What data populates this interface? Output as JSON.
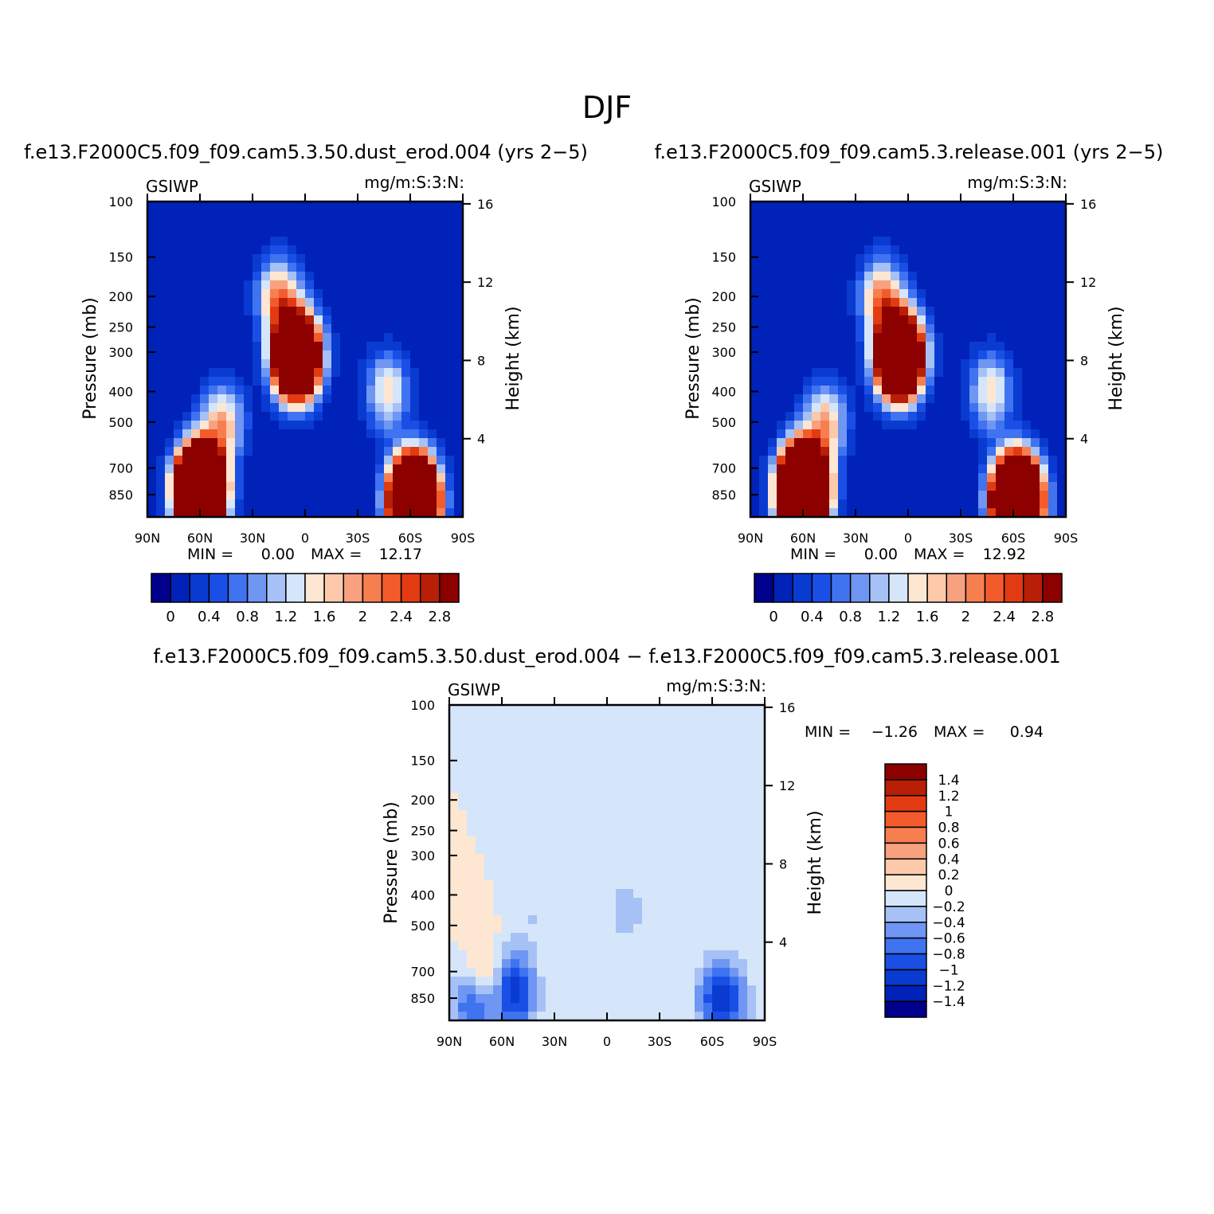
{
  "figure": {
    "title": "DJF"
  },
  "palettes": {
    "abs": [
      "#00008c",
      "#0022b8",
      "#0a3bd1",
      "#1a4fe6",
      "#3f73f0",
      "#6f96f2",
      "#a6c1f5",
      "#d5e6fa",
      "#fde6d2",
      "#fcc9ab",
      "#f7a17e",
      "#f77f4f",
      "#f45b2c",
      "#e23b12",
      "#b81f06",
      "#8c0000"
    ],
    "diff": [
      "#00008c",
      "#0022b8",
      "#0a3bd1",
      "#1a4fe6",
      "#3f73f0",
      "#6f96f2",
      "#a6c1f5",
      "#d5e6fa",
      "#fde6d2",
      "#fcc9ab",
      "#f7a17e",
      "#f77f4f",
      "#f45b2c",
      "#e23b12",
      "#b81f06",
      "#8c0000"
    ]
  },
  "chart_data": [
    {
      "type": "heatmap",
      "title": "f.e13.F2000C5.f09_f09.cam5.3.50.dust_erod.004 (yrs 2−5)",
      "left_label": "GSIWP",
      "right_label": "mg/m:S:3:N:",
      "ylabel": "Pressure (mb)",
      "ylabel_right": "Height (km)",
      "x_ticks": [
        "90N",
        "60N",
        "30N",
        "0",
        "30S",
        "60S",
        "90S"
      ],
      "y_ticks": [
        "100",
        "150",
        "200",
        "250",
        "300",
        "400",
        "500",
        "700",
        "850"
      ],
      "y_ticks_right": [
        "16",
        "12",
        "8",
        "4"
      ],
      "min_label": "MIN =",
      "min_value": "0.00",
      "max_label": "MAX =",
      "max_value": "12.17",
      "colorbar_labels": [
        "0",
        "0.4",
        "0.8",
        "1.2",
        "1.6",
        "2",
        "2.4",
        "2.8"
      ],
      "levels": [
        0,
        0.2,
        0.4,
        0.6,
        0.8,
        1.0,
        1.2,
        1.4,
        1.6,
        1.8,
        2.0,
        2.2,
        2.4,
        2.6,
        2.8
      ],
      "features": [
        {
          "lat": 60,
          "p": 820,
          "amp": 13.0
        },
        {
          "lat": 47,
          "p": 500,
          "amp": 1.8
        },
        {
          "lat": 5,
          "p": 310,
          "amp": 9.0
        },
        {
          "lat": 15,
          "p": 200,
          "amp": 2.0
        },
        {
          "lat": -47,
          "p": 400,
          "amp": 1.6
        },
        {
          "lat": -62,
          "p": 880,
          "amp": 12.0
        }
      ]
    },
    {
      "type": "heatmap",
      "title": "f.e13.F2000C5.f09_f09.cam5.3.release.001 (yrs 2−5)",
      "left_label": "GSIWP",
      "right_label": "mg/m:S:3:N:",
      "ylabel": "Pressure (mb)",
      "ylabel_right": "Height (km)",
      "x_ticks": [
        "90N",
        "60N",
        "30N",
        "0",
        "30S",
        "60S",
        "90S"
      ],
      "y_ticks": [
        "100",
        "150",
        "200",
        "250",
        "300",
        "400",
        "500",
        "700",
        "850"
      ],
      "y_ticks_right": [
        "16",
        "12",
        "8",
        "4"
      ],
      "min_label": "MIN =",
      "min_value": "0.00",
      "max_label": "MAX =",
      "max_value": "12.92",
      "colorbar_labels": [
        "0",
        "0.4",
        "0.8",
        "1.2",
        "1.6",
        "2",
        "2.4",
        "2.8"
      ],
      "levels": [
        0,
        0.2,
        0.4,
        0.6,
        0.8,
        1.0,
        1.2,
        1.4,
        1.6,
        1.8,
        2.0,
        2.2,
        2.4,
        2.6,
        2.8
      ],
      "features": [
        {
          "lat": 60,
          "p": 820,
          "amp": 13.5
        },
        {
          "lat": 47,
          "p": 500,
          "amp": 1.8
        },
        {
          "lat": 5,
          "p": 310,
          "amp": 9.3
        },
        {
          "lat": 15,
          "p": 200,
          "amp": 2.0
        },
        {
          "lat": -47,
          "p": 400,
          "amp": 1.6
        },
        {
          "lat": -62,
          "p": 880,
          "amp": 12.5
        }
      ]
    },
    {
      "type": "heatmap",
      "title": "f.e13.F2000C5.f09_f09.cam5.3.50.dust_erod.004 − f.e13.F2000C5.f09_f09.cam5.3.release.001",
      "left_label": "GSIWP",
      "right_label": "mg/m:S:3:N:",
      "ylabel": "Pressure (mb)",
      "ylabel_right": "Height (km)",
      "x_ticks": [
        "90N",
        "60N",
        "30N",
        "0",
        "30S",
        "60S",
        "90S"
      ],
      "y_ticks": [
        "100",
        "150",
        "200",
        "250",
        "300",
        "400",
        "500",
        "700",
        "850"
      ],
      "y_ticks_right": [
        "16",
        "12",
        "8",
        "4"
      ],
      "min_label": "MIN =",
      "min_value": "−1.26",
      "max_label": "MAX =",
      "max_value": "0.94",
      "colorbar_labels": [
        "1.4",
        "1.2",
        "1",
        "0.8",
        "0.6",
        "0.4",
        "0.2",
        "0",
        "−0.2",
        "−0.4",
        "−0.6",
        "−0.8",
        "−1",
        "−1.2",
        "−1.4"
      ],
      "levels": [
        -1.4,
        -1.2,
        -1.0,
        -0.8,
        -0.6,
        -0.4,
        -0.2,
        0,
        0.2,
        0.4,
        0.6,
        0.8,
        1.0,
        1.2,
        1.4
      ],
      "features": [
        {
          "lat": 75,
          "p": 870,
          "amp": -1.26
        },
        {
          "lat": 70,
          "p": 760,
          "amp": 0.94
        },
        {
          "lat": 55,
          "p": 780,
          "amp": -0.9
        },
        {
          "lat": 50,
          "p": 850,
          "amp": -0.4
        },
        {
          "lat": -62,
          "p": 860,
          "amp": -0.7
        },
        {
          "lat": -70,
          "p": 860,
          "amp": -0.6
        },
        {
          "lat": -12,
          "p": 450,
          "amp": -0.3
        },
        {
          "lat": 40,
          "p": 450,
          "amp": -0.2
        }
      ]
    }
  ]
}
